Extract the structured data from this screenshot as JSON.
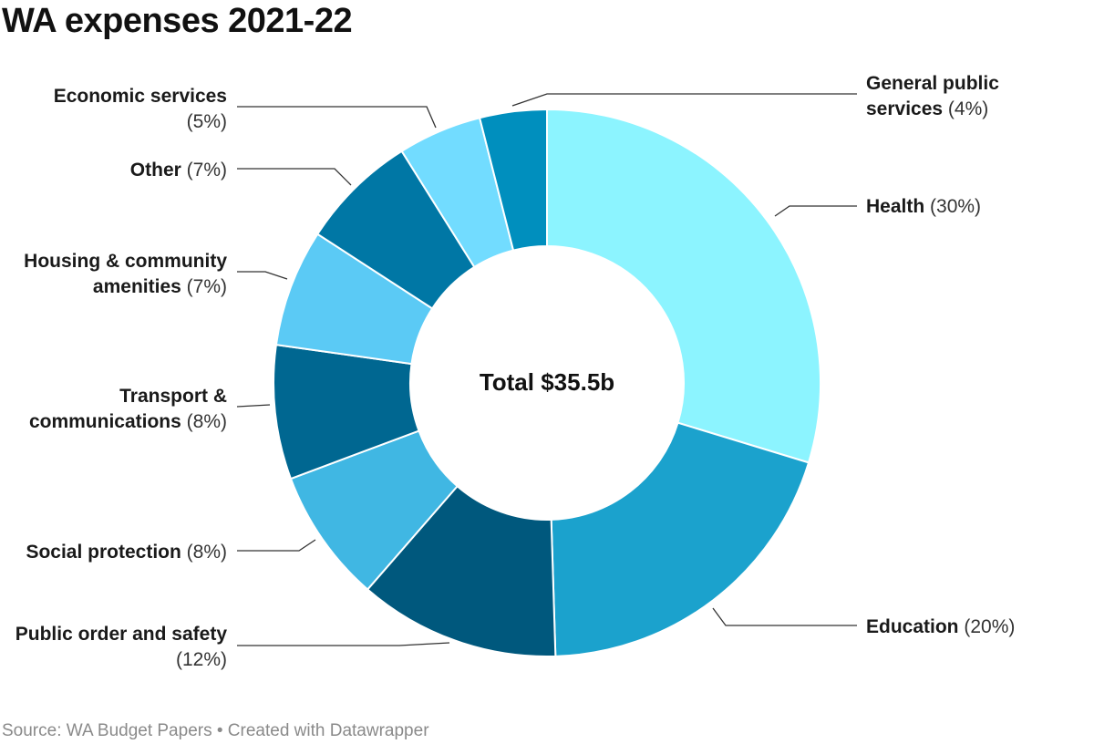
{
  "header": {
    "title": "WA expenses 2021-22"
  },
  "footer": {
    "source": "Source: WA Budget Papers • Created with Datawrapper"
  },
  "chart_data": {
    "type": "pie",
    "title": "WA expenses 2021-22",
    "center_label": "Total $35.5b",
    "hole": 0.5,
    "unit": "%",
    "slices": [
      {
        "label": "Health",
        "value": 30,
        "pct_text": "(30%)",
        "color": "#8cf4ff"
      },
      {
        "label": "Education",
        "value": 20,
        "pct_text": "(20%)",
        "color": "#1ba2cd"
      },
      {
        "label": "Public order and safety",
        "value": 12,
        "pct_text": "(12%)",
        "color": "#00587d"
      },
      {
        "label": "Social protection",
        "value": 8,
        "pct_text": "(8%)",
        "color": "#40b7e3"
      },
      {
        "label": "Transport & communications",
        "value": 8,
        "pct_text": "(8%)",
        "color": "#006791"
      },
      {
        "label": "Housing & community amenities",
        "value": 7,
        "pct_text": "(7%)",
        "color": "#5bcaf5"
      },
      {
        "label": "Other",
        "value": 7,
        "pct_text": "(7%)",
        "color": "#0077a5"
      },
      {
        "label": "Economic services",
        "value": 5,
        "pct_text": "(5%)",
        "color": "#72dcff"
      },
      {
        "label": "General public services",
        "value": 4,
        "pct_text": "(4%)",
        "color": "#008fbe"
      }
    ]
  }
}
